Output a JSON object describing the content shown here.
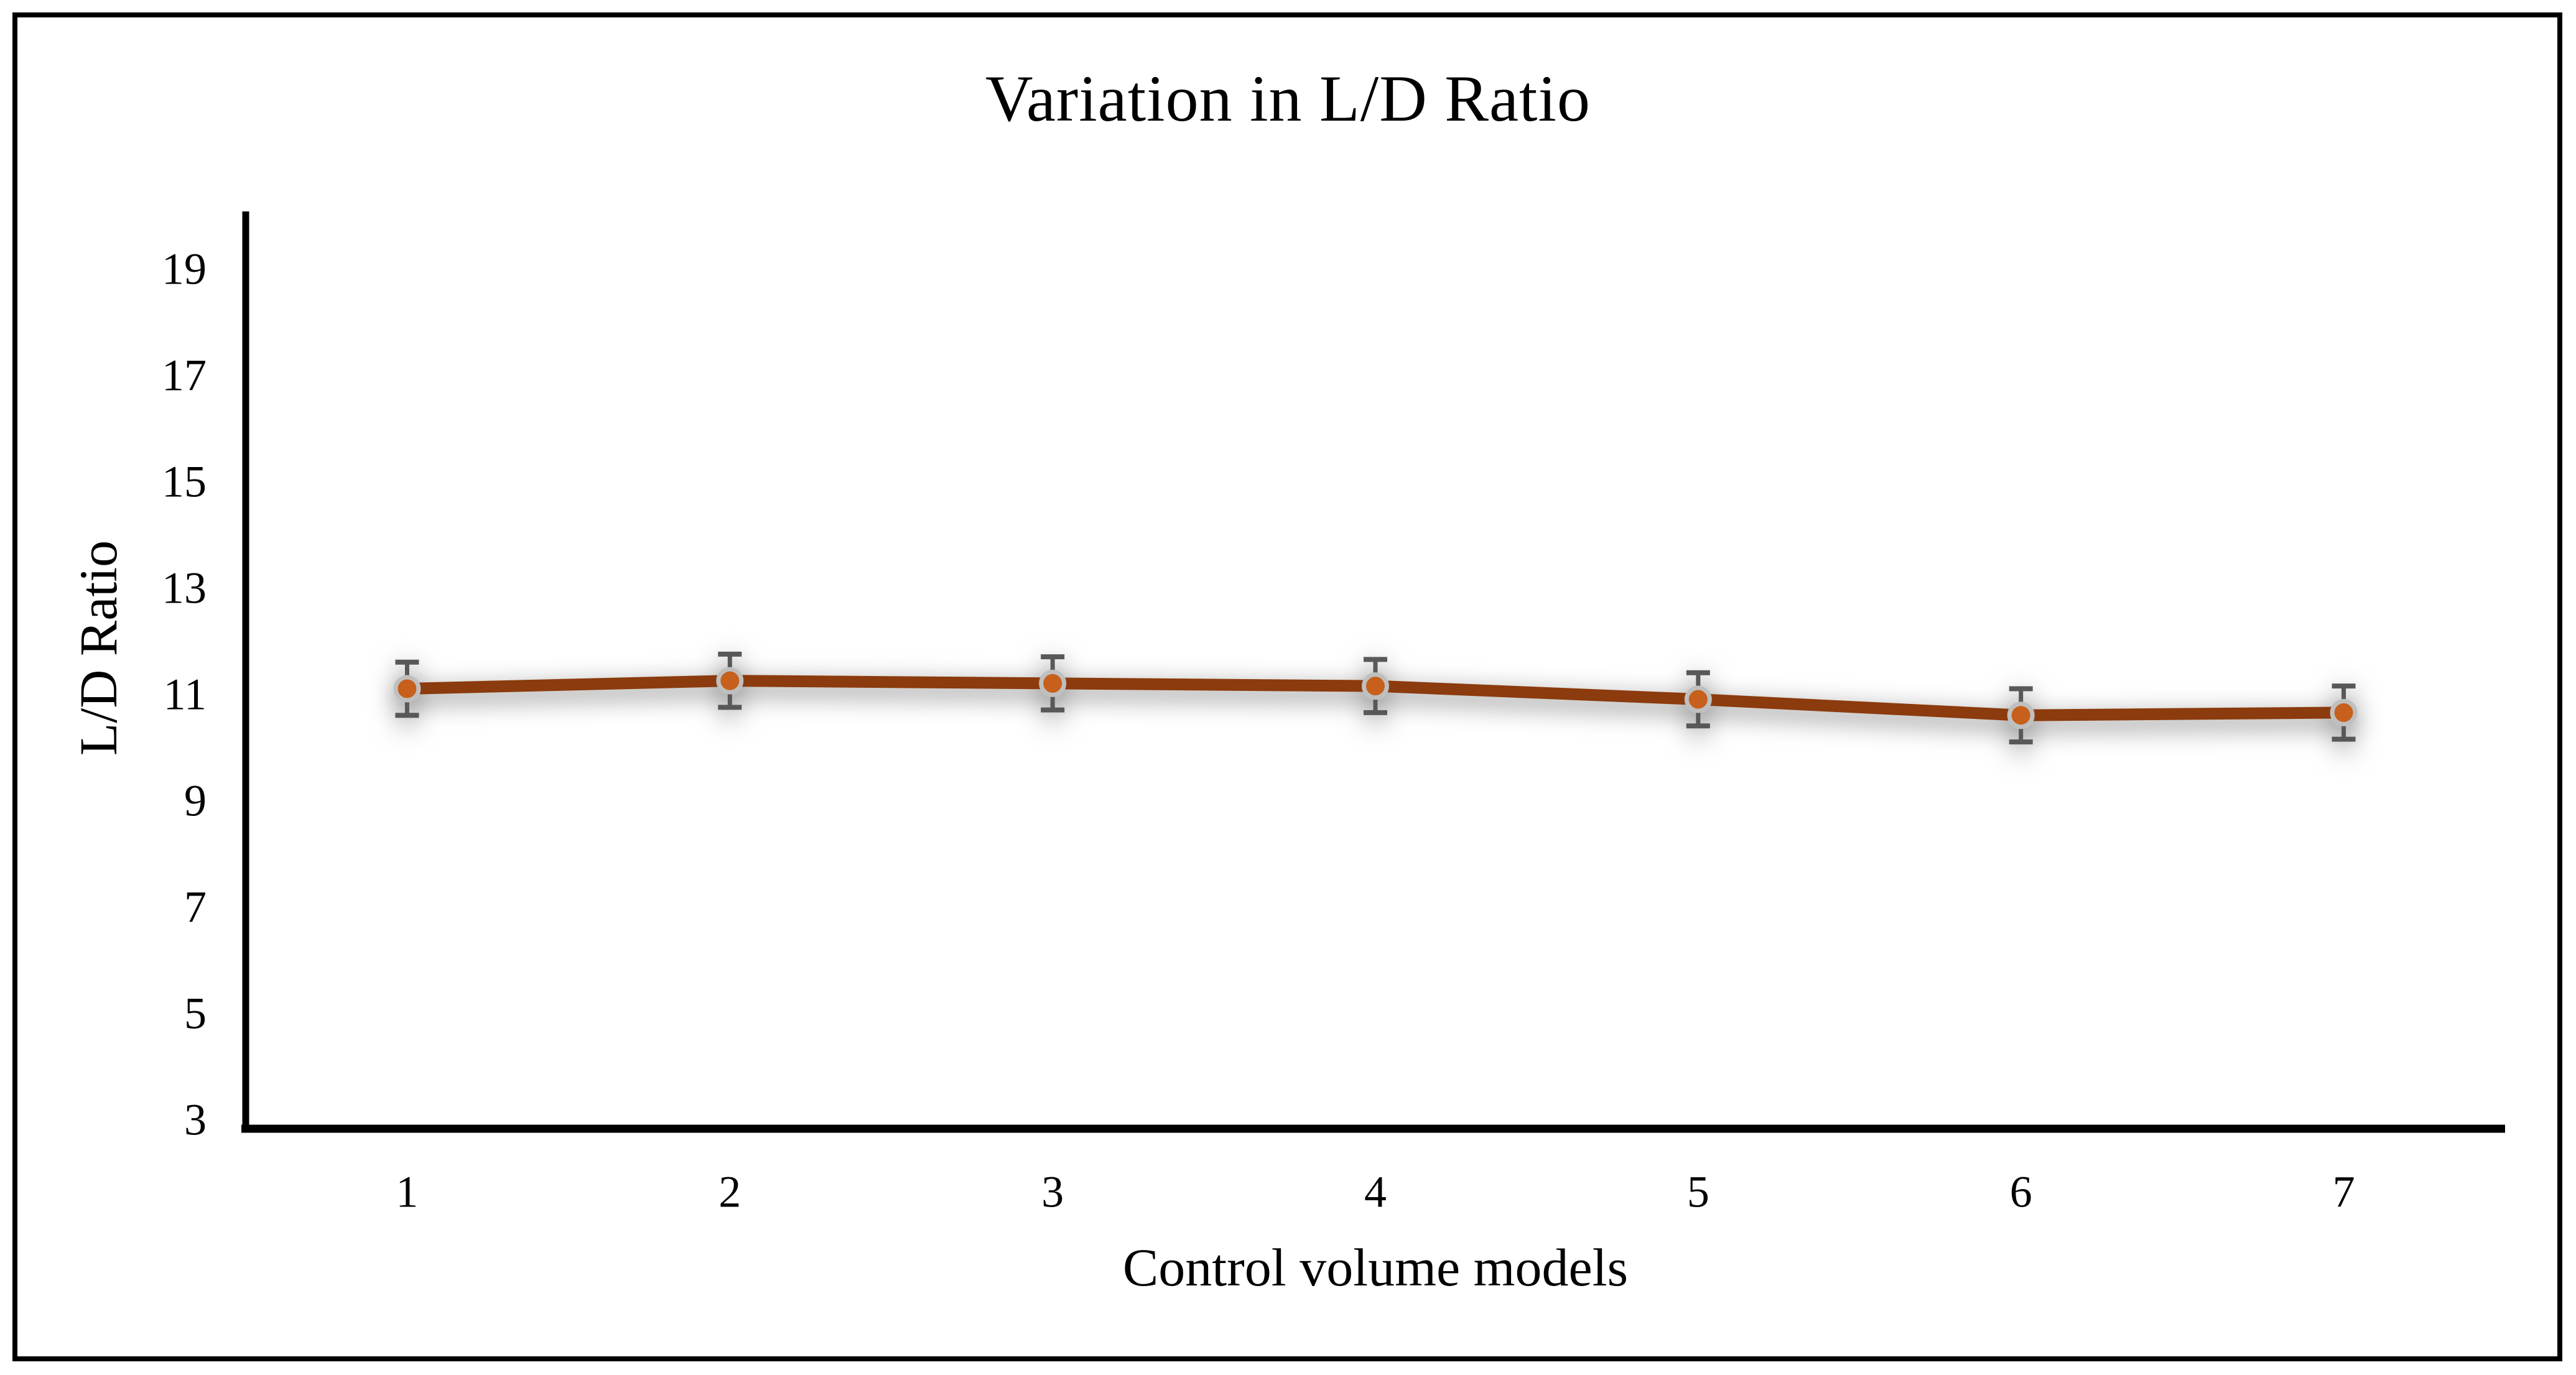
{
  "chart_data": {
    "type": "line",
    "title": "Variation in L/D Ratio",
    "xlabel": "Control volume models",
    "ylabel": "L/D Ratio",
    "categories": [
      "1",
      "2",
      "3",
      "4",
      "5",
      "6",
      "7"
    ],
    "values": [
      11.1,
      11.25,
      11.2,
      11.15,
      10.9,
      10.6,
      10.65
    ],
    "error_bar_half_width": 0.5,
    "y_ticks": [
      3,
      5,
      7,
      9,
      11,
      13,
      15,
      17,
      19
    ],
    "ylim": [
      3,
      19.9
    ],
    "grid": false,
    "legend": "none",
    "colors": {
      "line": "#8B3B10",
      "marker_fill": "#C6611D",
      "marker_ring": "#BFBFBF",
      "error_bar": "#595959",
      "axis": "#000000"
    }
  }
}
